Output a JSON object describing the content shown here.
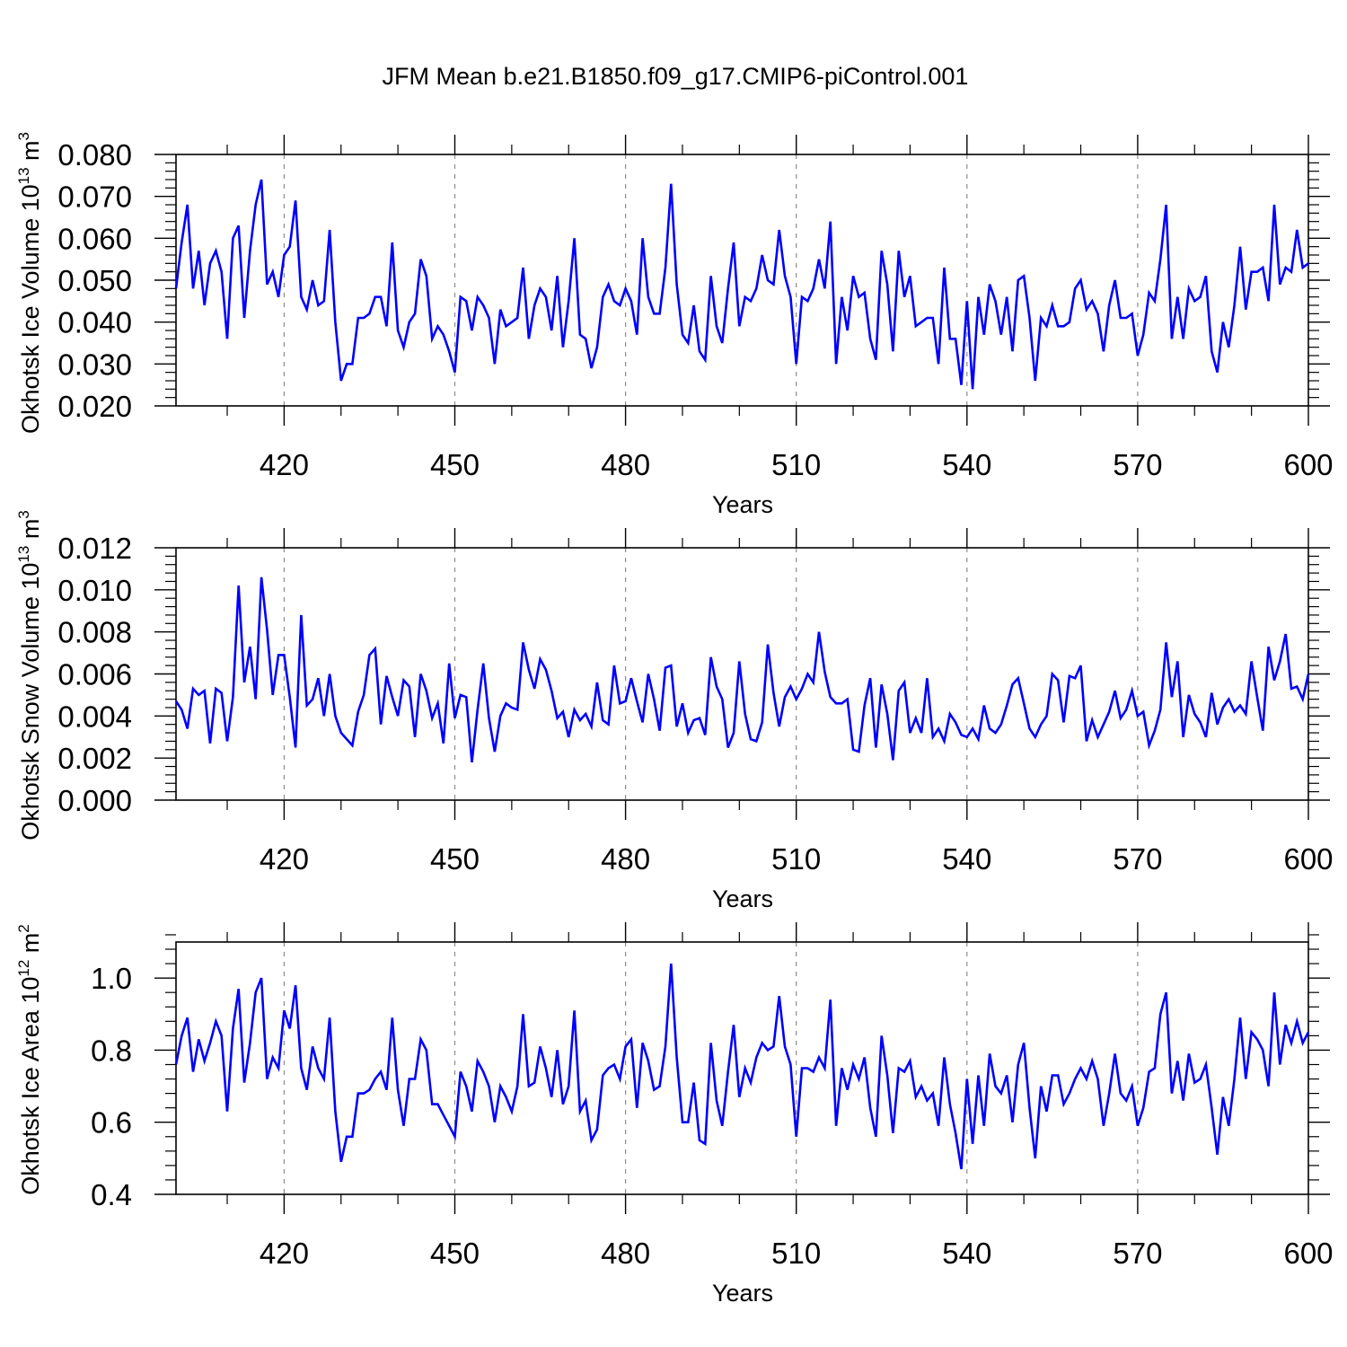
{
  "figure": {
    "title": "JFM Mean b.e21.B1850.f09_g17.CMIP6-piControl.001"
  },
  "colors": {
    "line": "#0000ff",
    "axis": "#000000",
    "grid": "#8c8c8c"
  },
  "chart_data": [
    {
      "type": "line",
      "xlabel": "Years",
      "ylabel_main": "Okhotsk Ice Volume 10",
      "ylabel_exp": "13",
      "ylabel_unit": " m",
      "ylabel_unit_exp": "3",
      "xlim": [
        401,
        600
      ],
      "ylim": [
        0.02,
        0.08
      ],
      "xticks": [
        420,
        450,
        480,
        510,
        540,
        570,
        600
      ],
      "yticks": [
        "0.020",
        "0.030",
        "0.040",
        "0.050",
        "0.060",
        "0.070",
        "0.080"
      ],
      "grid_x": "dashed vertical at major x ticks",
      "x_start": 401,
      "series": [
        {
          "values": [
            0.048,
            0.059,
            0.068,
            0.048,
            0.057,
            0.044,
            0.054,
            0.057,
            0.052,
            0.036,
            0.06,
            0.063,
            0.041,
            0.057,
            0.068,
            0.074,
            0.049,
            0.052,
            0.046,
            0.056,
            0.058,
            0.069,
            0.046,
            0.043,
            0.05,
            0.044,
            0.045,
            0.062,
            0.04,
            0.026,
            0.03,
            0.03,
            0.041,
            0.041,
            0.042,
            0.046,
            0.046,
            0.039,
            0.059,
            0.038,
            0.034,
            0.04,
            0.042,
            0.055,
            0.051,
            0.036,
            0.039,
            0.037,
            0.033,
            0.028,
            0.046,
            0.045,
            0.038,
            0.046,
            0.044,
            0.041,
            0.03,
            0.043,
            0.039,
            0.04,
            0.041,
            0.053,
            0.036,
            0.044,
            0.048,
            0.046,
            0.038,
            0.051,
            0.034,
            0.045,
            0.06,
            0.037,
            0.036,
            0.029,
            0.034,
            0.046,
            0.049,
            0.045,
            0.044,
            0.048,
            0.045,
            0.037,
            0.06,
            0.046,
            0.042,
            0.042,
            0.053,
            0.073,
            0.049,
            0.037,
            0.035,
            0.044,
            0.033,
            0.031,
            0.051,
            0.039,
            0.035,
            0.048,
            0.059,
            0.039,
            0.046,
            0.045,
            0.048,
            0.056,
            0.05,
            0.049,
            0.062,
            0.051,
            0.046,
            0.03,
            0.046,
            0.045,
            0.048,
            0.055,
            0.048,
            0.064,
            0.03,
            0.046,
            0.038,
            0.051,
            0.046,
            0.047,
            0.036,
            0.031,
            0.057,
            0.049,
            0.033,
            0.057,
            0.046,
            0.051,
            0.039,
            0.04,
            0.041,
            0.041,
            0.03,
            0.053,
            0.036,
            0.036,
            0.025,
            0.045,
            0.024,
            0.046,
            0.037,
            0.049,
            0.045,
            0.037,
            0.046,
            0.033,
            0.05,
            0.051,
            0.041,
            0.026,
            0.041,
            0.039,
            0.044,
            0.039,
            0.039,
            0.04,
            0.048,
            0.05,
            0.043,
            0.045,
            0.042,
            0.033,
            0.044,
            0.05,
            0.041,
            0.041,
            0.042,
            0.032,
            0.037,
            0.047,
            0.045,
            0.055,
            0.068,
            0.036,
            0.046,
            0.036,
            0.048,
            0.045,
            0.046,
            0.051,
            0.033,
            0.028,
            0.04,
            0.034,
            0.044,
            0.058,
            0.043,
            0.052,
            0.052,
            0.053,
            0.045,
            0.068,
            0.049,
            0.053,
            0.052,
            0.062,
            0.053,
            0.054
          ]
        }
      ]
    },
    {
      "type": "line",
      "xlabel": "Years",
      "ylabel_main": "Okhotsk Snow Volume 10",
      "ylabel_exp": "13",
      "ylabel_unit": " m",
      "ylabel_unit_exp": "3",
      "xlim": [
        401,
        600
      ],
      "ylim": [
        0.0,
        0.012
      ],
      "xticks": [
        420,
        450,
        480,
        510,
        540,
        570,
        600
      ],
      "yticks": [
        "0.000",
        "0.002",
        "0.004",
        "0.006",
        "0.008",
        "0.010",
        "0.012"
      ],
      "grid_x": "dashed vertical at major x ticks",
      "x_start": 401,
      "series": [
        {
          "values": [
            0.0047,
            0.0043,
            0.0034,
            0.0053,
            0.005,
            0.0052,
            0.0027,
            0.0053,
            0.0051,
            0.0028,
            0.0049,
            0.0102,
            0.0056,
            0.0073,
            0.0048,
            0.0106,
            0.0081,
            0.005,
            0.0069,
            0.0069,
            0.0049,
            0.0025,
            0.0088,
            0.0045,
            0.0048,
            0.0058,
            0.004,
            0.006,
            0.004,
            0.0032,
            0.0029,
            0.0026,
            0.0042,
            0.005,
            0.0069,
            0.0072,
            0.0036,
            0.0059,
            0.0049,
            0.004,
            0.0057,
            0.0054,
            0.003,
            0.006,
            0.0052,
            0.0039,
            0.0046,
            0.0027,
            0.0065,
            0.0039,
            0.005,
            0.0049,
            0.0018,
            0.0043,
            0.0065,
            0.0039,
            0.0023,
            0.004,
            0.0046,
            0.0044,
            0.0043,
            0.0075,
            0.0062,
            0.0053,
            0.0067,
            0.0062,
            0.0052,
            0.0039,
            0.0042,
            0.003,
            0.0043,
            0.0038,
            0.0041,
            0.0035,
            0.0056,
            0.0038,
            0.0036,
            0.0064,
            0.0046,
            0.0047,
            0.0058,
            0.0047,
            0.0037,
            0.006,
            0.0048,
            0.0033,
            0.0063,
            0.0064,
            0.0035,
            0.0046,
            0.0032,
            0.0038,
            0.0039,
            0.0031,
            0.0068,
            0.0054,
            0.0048,
            0.0025,
            0.0032,
            0.0066,
            0.0041,
            0.0029,
            0.0028,
            0.0037,
            0.0074,
            0.0051,
            0.0035,
            0.0049,
            0.0054,
            0.0048,
            0.0053,
            0.006,
            0.0056,
            0.008,
            0.0061,
            0.0049,
            0.0046,
            0.0046,
            0.0048,
            0.0024,
            0.0023,
            0.0045,
            0.0058,
            0.0025,
            0.0055,
            0.0041,
            0.0019,
            0.0052,
            0.0056,
            0.0032,
            0.0039,
            0.0032,
            0.0058,
            0.003,
            0.0034,
            0.0028,
            0.0041,
            0.0037,
            0.0031,
            0.003,
            0.0034,
            0.0029,
            0.0045,
            0.0034,
            0.0032,
            0.0036,
            0.0045,
            0.0055,
            0.0058,
            0.0046,
            0.0034,
            0.003,
            0.0036,
            0.004,
            0.006,
            0.0057,
            0.0037,
            0.0059,
            0.0058,
            0.0064,
            0.0028,
            0.0038,
            0.003,
            0.0036,
            0.0042,
            0.0052,
            0.0039,
            0.0043,
            0.0052,
            0.004,
            0.0042,
            0.0026,
            0.0033,
            0.0043,
            0.0075,
            0.0049,
            0.0066,
            0.003,
            0.005,
            0.0041,
            0.0037,
            0.003,
            0.0051,
            0.0036,
            0.0044,
            0.0048,
            0.0042,
            0.0045,
            0.0041,
            0.0066,
            0.0049,
            0.0033,
            0.0073,
            0.0057,
            0.0066,
            0.0079,
            0.0053,
            0.0054,
            0.0048,
            0.006
          ]
        }
      ]
    },
    {
      "type": "line",
      "xlabel": "Years",
      "ylabel_main": "Okhotsk Ice Area 10",
      "ylabel_exp": "12",
      "ylabel_unit": " m",
      "ylabel_unit_exp": "2",
      "xlim": [
        401,
        600
      ],
      "ylim": [
        0.4,
        1.1
      ],
      "xticks": [
        420,
        450,
        480,
        510,
        540,
        570,
        600
      ],
      "yticks": [
        "0.4",
        "0.6",
        "0.8",
        "1.0"
      ],
      "grid_x": "dashed vertical at major x ticks",
      "x_start": 401,
      "series": [
        {
          "values": [
            0.76,
            0.84,
            0.89,
            0.74,
            0.83,
            0.77,
            0.82,
            0.88,
            0.84,
            0.63,
            0.86,
            0.97,
            0.71,
            0.82,
            0.96,
            1.0,
            0.72,
            0.78,
            0.75,
            0.91,
            0.86,
            0.98,
            0.75,
            0.69,
            0.81,
            0.75,
            0.72,
            0.89,
            0.63,
            0.49,
            0.56,
            0.56,
            0.68,
            0.68,
            0.69,
            0.72,
            0.74,
            0.69,
            0.89,
            0.69,
            0.59,
            0.72,
            0.72,
            0.83,
            0.8,
            0.65,
            0.65,
            0.62,
            0.59,
            0.56,
            0.74,
            0.7,
            0.63,
            0.77,
            0.74,
            0.7,
            0.6,
            0.7,
            0.67,
            0.63,
            0.7,
            0.9,
            0.7,
            0.71,
            0.81,
            0.75,
            0.67,
            0.8,
            0.65,
            0.7,
            0.91,
            0.63,
            0.66,
            0.55,
            0.58,
            0.73,
            0.75,
            0.76,
            0.72,
            0.81,
            0.83,
            0.64,
            0.82,
            0.77,
            0.69,
            0.7,
            0.81,
            1.04,
            0.78,
            0.6,
            0.6,
            0.71,
            0.55,
            0.54,
            0.82,
            0.66,
            0.59,
            0.74,
            0.87,
            0.67,
            0.75,
            0.71,
            0.78,
            0.82,
            0.8,
            0.81,
            0.95,
            0.81,
            0.76,
            0.56,
            0.75,
            0.75,
            0.74,
            0.78,
            0.75,
            0.94,
            0.59,
            0.75,
            0.69,
            0.76,
            0.72,
            0.78,
            0.64,
            0.56,
            0.84,
            0.73,
            0.57,
            0.75,
            0.74,
            0.77,
            0.67,
            0.7,
            0.66,
            0.68,
            0.59,
            0.78,
            0.65,
            0.57,
            0.47,
            0.72,
            0.54,
            0.73,
            0.59,
            0.79,
            0.7,
            0.68,
            0.73,
            0.6,
            0.76,
            0.82,
            0.64,
            0.5,
            0.7,
            0.63,
            0.73,
            0.73,
            0.65,
            0.68,
            0.72,
            0.75,
            0.72,
            0.77,
            0.72,
            0.59,
            0.68,
            0.79,
            0.68,
            0.66,
            0.7,
            0.59,
            0.64,
            0.74,
            0.75,
            0.9,
            0.96,
            0.68,
            0.77,
            0.66,
            0.79,
            0.71,
            0.72,
            0.76,
            0.64,
            0.51,
            0.67,
            0.59,
            0.72,
            0.89,
            0.72,
            0.85,
            0.83,
            0.8,
            0.7,
            0.96,
            0.76,
            0.87,
            0.82,
            0.88,
            0.82,
            0.85
          ]
        }
      ]
    }
  ]
}
